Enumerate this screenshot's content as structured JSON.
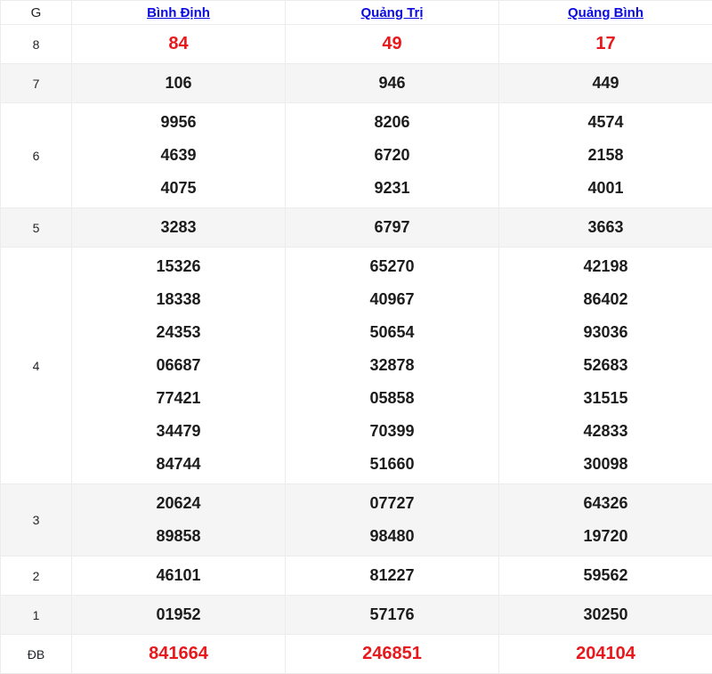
{
  "colors": {
    "link_blue": "#0b0bdf",
    "special_red": "#e8191c",
    "stripe_bg": "#f5f5f5",
    "border": "#ececec",
    "number_black": "#1c1c1c"
  },
  "table": {
    "tier_header": "G",
    "provinces": [
      {
        "label": "Bình Định",
        "slug": "binh-dinh"
      },
      {
        "label": "Quảng Trị",
        "slug": "quang-tri"
      },
      {
        "label": "Quảng Bình",
        "slug": "quang-binh"
      }
    ],
    "rows": [
      {
        "tier": "8",
        "special": true,
        "striped": false,
        "values": [
          [
            "84"
          ],
          [
            "49"
          ],
          [
            "17"
          ]
        ]
      },
      {
        "tier": "7",
        "special": false,
        "striped": true,
        "values": [
          [
            "106"
          ],
          [
            "946"
          ],
          [
            "449"
          ]
        ]
      },
      {
        "tier": "6",
        "special": false,
        "striped": false,
        "values": [
          [
            "9956",
            "4639",
            "4075"
          ],
          [
            "8206",
            "6720",
            "9231"
          ],
          [
            "4574",
            "2158",
            "4001"
          ]
        ]
      },
      {
        "tier": "5",
        "special": false,
        "striped": true,
        "values": [
          [
            "3283"
          ],
          [
            "6797"
          ],
          [
            "3663"
          ]
        ]
      },
      {
        "tier": "4",
        "special": false,
        "striped": false,
        "values": [
          [
            "15326",
            "18338",
            "24353",
            "06687",
            "77421",
            "34479",
            "84744"
          ],
          [
            "65270",
            "40967",
            "50654",
            "32878",
            "05858",
            "70399",
            "51660"
          ],
          [
            "42198",
            "86402",
            "93036",
            "52683",
            "31515",
            "42833",
            "30098"
          ]
        ]
      },
      {
        "tier": "3",
        "special": false,
        "striped": true,
        "values": [
          [
            "20624",
            "89858"
          ],
          [
            "07727",
            "98480"
          ],
          [
            "64326",
            "19720"
          ]
        ]
      },
      {
        "tier": "2",
        "special": false,
        "striped": false,
        "values": [
          [
            "46101"
          ],
          [
            "81227"
          ],
          [
            "59562"
          ]
        ]
      },
      {
        "tier": "1",
        "special": false,
        "striped": true,
        "values": [
          [
            "01952"
          ],
          [
            "57176"
          ],
          [
            "30250"
          ]
        ]
      },
      {
        "tier": "ĐB",
        "special": true,
        "striped": false,
        "values": [
          [
            "841664"
          ],
          [
            "246851"
          ],
          [
            "204104"
          ]
        ]
      }
    ]
  }
}
